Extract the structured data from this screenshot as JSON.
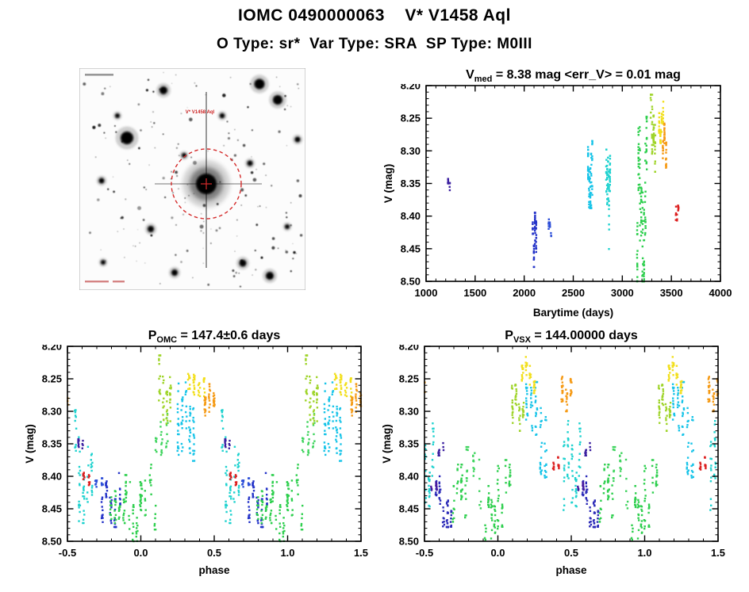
{
  "page": {
    "title": "IOMC 0490000063    V* V1458 Aql",
    "subtitle": "O Type: sr*  Var Type: SRA  SP Type: M0III"
  },
  "star": {
    "iomc_id": "0490000063",
    "name": "V* V1458 Aql",
    "o_type": "sr*",
    "var_type": "SRA",
    "sp_type": "M0III",
    "v_med_mag": 8.38,
    "err_v_mag": 0.01,
    "p_omc_days": 147.4,
    "p_omc_err_days": 0.6,
    "p_vsx_days": 144.0
  },
  "finder_chart": {
    "label": "V* V1458 Aql",
    "marker_color": "#d42a2a"
  },
  "chart_data": [
    {
      "id": "lightcurve",
      "type": "scatter",
      "title": {
        "main": "V",
        "sub": "med",
        "rest": " = 8.38 mag <err_V> = 0.01 mag"
      },
      "xlabel": "Barytime (days)",
      "ylabel": "V (mag)",
      "xlim": [
        1000,
        4000
      ],
      "ylim": [
        8.2,
        8.5
      ],
      "y_axis_note": "magnitude increases downward",
      "xticks": [
        1000,
        1500,
        2000,
        2500,
        3000,
        3500,
        4000
      ],
      "xtick_labels": [
        "1000",
        "1500",
        "2000",
        "2500",
        "3000",
        "3500",
        "4000"
      ],
      "yticks": [
        8.2,
        8.25,
        8.3,
        8.35,
        8.4,
        8.45,
        8.5
      ],
      "ytick_labels": [
        "8.20",
        "8.25",
        "8.30",
        "8.35",
        "8.40",
        "8.45",
        "8.50"
      ],
      "x_minor": 100,
      "y_minor": 0.01,
      "fold": false,
      "clusters": [
        {
          "x": [
            1224,
            1242
          ],
          "y": [
            8.343,
            8.368
          ],
          "n": 12,
          "cols": 2,
          "color": "#3b1fa0"
        },
        {
          "x": [
            2088,
            2122
          ],
          "y": [
            8.395,
            8.478
          ],
          "n": 60,
          "cols": 4,
          "color": "#2433c8"
        },
        {
          "x": [
            2250,
            2274
          ],
          "y": [
            8.403,
            8.432
          ],
          "n": 15,
          "cols": 3,
          "color": "#2d4fd8"
        },
        {
          "x": [
            2652,
            2694
          ],
          "y": [
            8.238,
            8.388
          ],
          "n": 75,
          "cols": 5,
          "color": "#18c4e8"
        },
        {
          "x": [
            2836,
            2874
          ],
          "y": [
            8.298,
            8.472
          ],
          "n": 65,
          "cols": 5,
          "color": "#1fd2cf"
        },
        {
          "x": [
            3152,
            3248
          ],
          "y": [
            8.248,
            8.5
          ],
          "n": 135,
          "cols": 8,
          "color": "#2ecf4e"
        },
        {
          "x": [
            3290,
            3334
          ],
          "y": [
            8.214,
            8.332
          ],
          "n": 55,
          "cols": 4,
          "color": "#9fd42a"
        },
        {
          "x": [
            3376,
            3416
          ],
          "y": [
            8.21,
            8.288
          ],
          "n": 48,
          "cols": 4,
          "color": "#f2df1d"
        },
        {
          "x": [
            3414,
            3446
          ],
          "y": [
            8.258,
            8.326
          ],
          "n": 42,
          "cols": 3,
          "color": "#f59a15"
        },
        {
          "x": [
            3546,
            3570
          ],
          "y": [
            8.384,
            8.414
          ],
          "n": 16,
          "cols": 3,
          "color": "#dc1f1f"
        }
      ]
    },
    {
      "id": "phase_omc",
      "type": "scatter",
      "title": {
        "main": "P",
        "sub": "OMC",
        "rest": " = 147.4±0.6 days"
      },
      "xlabel": "phase",
      "ylabel": "V (mag)",
      "xlim": [
        -0.5,
        1.5
      ],
      "ylim": [
        8.2,
        8.5
      ],
      "xticks": [
        -0.5,
        0.0,
        0.5,
        1.0,
        1.5
      ],
      "xtick_labels": [
        "-0.5",
        "0.0",
        "0.5",
        "1.0",
        "1.5"
      ],
      "yticks": [
        8.2,
        8.25,
        8.3,
        8.35,
        8.4,
        8.45,
        8.5
      ],
      "ytick_labels": [
        "8.20",
        "8.25",
        "8.30",
        "8.35",
        "8.40",
        "8.45",
        "8.50"
      ],
      "x_minor": 0.1,
      "y_minor": 0.01,
      "fold": true,
      "clusters": [
        {
          "x": [
            0.575,
            0.603
          ],
          "y": [
            8.343,
            8.368
          ],
          "n": 12,
          "cols": 2,
          "color": "#3b1fa0"
        },
        {
          "x": [
            0.735,
            0.855
          ],
          "y": [
            8.395,
            8.478
          ],
          "n": 60,
          "cols": 5,
          "color": "#2433c8"
        },
        {
          "x": [
            0.695,
            0.738
          ],
          "y": [
            8.403,
            8.432
          ],
          "n": 15,
          "cols": 2,
          "color": "#2d4fd8"
        },
        {
          "x": [
            0.255,
            0.36
          ],
          "y": [
            8.238,
            8.388
          ],
          "n": 75,
          "cols": 5,
          "color": "#18c4e8"
        },
        {
          "x": [
            0.555,
            0.665
          ],
          "y": [
            8.298,
            8.472
          ],
          "n": 65,
          "cols": 5,
          "color": "#1fd2cf"
        },
        {
          "x": [
            0.795,
            0.885
          ],
          "y": [
            8.385,
            8.472
          ],
          "n": 42,
          "cols": 4,
          "color": "#2ecf4e"
        },
        {
          "x": [
            0.898,
            0.998
          ],
          "y": [
            8.398,
            8.5
          ],
          "n": 48,
          "cols": 5,
          "color": "#2ecf4e"
        },
        {
          "x": [
            0.002,
            0.098
          ],
          "y": [
            8.368,
            8.482
          ],
          "n": 36,
          "cols": 4,
          "color": "#2ecf4e"
        },
        {
          "x": [
            0.102,
            0.178
          ],
          "y": [
            8.278,
            8.382
          ],
          "n": 26,
          "cols": 3,
          "color": "#3fd45e"
        },
        {
          "x": [
            0.128,
            0.202
          ],
          "y": [
            8.214,
            8.332
          ],
          "n": 52,
          "cols": 4,
          "color": "#9fd42a"
        },
        {
          "x": [
            0.328,
            0.432
          ],
          "y": [
            8.21,
            8.288
          ],
          "n": 46,
          "cols": 4,
          "color": "#f2df1d"
        },
        {
          "x": [
            0.438,
            0.499
          ],
          "y": [
            8.258,
            8.326
          ],
          "n": 42,
          "cols": 3,
          "color": "#f59a15"
        },
        {
          "x": [
            0.612,
            0.648
          ],
          "y": [
            8.384,
            8.414
          ],
          "n": 16,
          "cols": 2,
          "color": "#dc1f1f"
        }
      ]
    },
    {
      "id": "phase_vsx",
      "type": "scatter",
      "title": {
        "main": "P",
        "sub": "VSX",
        "rest": " = 144.00000 days"
      },
      "xlabel": "phase",
      "ylabel": "V (mag)",
      "xlim": [
        -0.5,
        1.5
      ],
      "ylim": [
        8.2,
        8.5
      ],
      "xticks": [
        -0.5,
        0.0,
        0.5,
        1.0,
        1.5
      ],
      "xtick_labels": [
        "-0.5",
        "0.0",
        "0.5",
        "1.0",
        "1.5"
      ],
      "yticks": [
        8.2,
        8.25,
        8.3,
        8.35,
        8.4,
        8.45,
        8.5
      ],
      "ytick_labels": [
        "8.20",
        "8.25",
        "8.30",
        "8.35",
        "8.40",
        "8.45",
        "8.50"
      ],
      "x_minor": 0.1,
      "y_minor": 0.01,
      "fold": true,
      "clusters": [
        {
          "x": [
            0.598,
            0.628
          ],
          "y": [
            8.343,
            8.368
          ],
          "n": 12,
          "cols": 2,
          "color": "#3b1fa0"
        },
        {
          "x": [
            0.578,
            0.682
          ],
          "y": [
            8.4,
            8.478
          ],
          "n": 60,
          "cols": 5,
          "color": "#2c2bb8"
        },
        {
          "x": [
            0.548,
            0.582
          ],
          "y": [
            8.403,
            8.432
          ],
          "n": 15,
          "cols": 2,
          "color": "#45189f"
        },
        {
          "x": [
            0.198,
            0.325
          ],
          "y": [
            8.255,
            8.402
          ],
          "n": 75,
          "cols": 5,
          "color": "#18c4e8"
        },
        {
          "x": [
            0.452,
            0.558
          ],
          "y": [
            8.298,
            8.452
          ],
          "n": 65,
          "cols": 5,
          "color": "#1fd2cf"
        },
        {
          "x": [
            0.698,
            0.782
          ],
          "y": [
            8.382,
            8.47
          ],
          "n": 42,
          "cols": 4,
          "color": "#2ecf4e"
        },
        {
          "x": [
            0.915,
            0.999
          ],
          "y": [
            8.415,
            8.5
          ],
          "n": 48,
          "cols": 5,
          "color": "#2ecf4e"
        },
        {
          "x": [
            0.002,
            0.082
          ],
          "y": [
            8.375,
            8.478
          ],
          "n": 36,
          "cols": 4,
          "color": "#2ecf4e"
        },
        {
          "x": [
            0.792,
            0.878
          ],
          "y": [
            8.355,
            8.458
          ],
          "n": 26,
          "cols": 3,
          "color": "#3fd45e"
        },
        {
          "x": [
            0.098,
            0.172
          ],
          "y": [
            8.238,
            8.33
          ],
          "n": 52,
          "cols": 4,
          "color": "#9fd42a"
        },
        {
          "x": [
            0.168,
            0.248
          ],
          "y": [
            8.21,
            8.272
          ],
          "n": 46,
          "cols": 4,
          "color": "#f2df1d"
        },
        {
          "x": [
            0.438,
            0.499
          ],
          "y": [
            8.232,
            8.3
          ],
          "n": 42,
          "cols": 3,
          "color": "#f59a15"
        },
        {
          "x": [
            0.378,
            0.412
          ],
          "y": [
            8.358,
            8.392
          ],
          "n": 16,
          "cols": 2,
          "color": "#dc1f1f"
        }
      ]
    }
  ]
}
